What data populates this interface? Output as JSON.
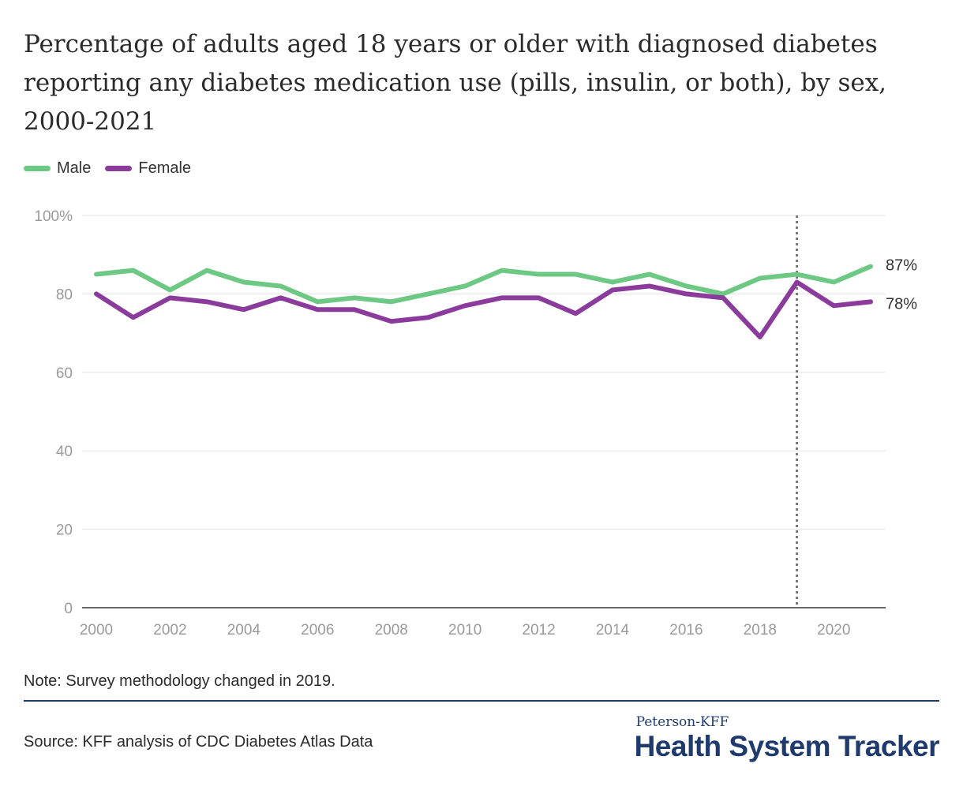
{
  "title": "Percentage of adults aged 18 years or older with diagnosed diabetes reporting any diabetes medication use (pills, insulin, or both), by sex, 2000-2021",
  "legend": [
    {
      "label": "Male",
      "color": "#6cc883"
    },
    {
      "label": "Female",
      "color": "#8a3b9b"
    }
  ],
  "chart_data": {
    "type": "line",
    "x": [
      2000,
      2001,
      2002,
      2003,
      2004,
      2005,
      2006,
      2007,
      2008,
      2009,
      2010,
      2011,
      2012,
      2013,
      2014,
      2015,
      2016,
      2017,
      2018,
      2019,
      2020,
      2021
    ],
    "series": [
      {
        "name": "Male",
        "color": "#6cc883",
        "values": [
          85,
          86,
          81,
          86,
          83,
          82,
          78,
          79,
          78,
          80,
          82,
          86,
          85,
          85,
          83,
          85,
          82,
          80,
          84,
          85,
          83,
          87
        ]
      },
      {
        "name": "Female",
        "color": "#8a3b9b",
        "values": [
          80,
          74,
          79,
          78,
          76,
          79,
          76,
          76,
          73,
          74,
          77,
          79,
          79,
          75,
          81,
          82,
          80,
          79,
          69,
          83,
          77,
          78
        ]
      }
    ],
    "end_labels": [
      "87%",
      "78%"
    ],
    "ylim": [
      0,
      100
    ],
    "yticks": [
      0,
      20,
      40,
      60,
      80,
      100
    ],
    "ytick_labels": [
      "0",
      "20",
      "40",
      "60",
      "80",
      "100%"
    ],
    "xticks": [
      2000,
      2002,
      2004,
      2006,
      2008,
      2010,
      2012,
      2014,
      2016,
      2018,
      2020
    ],
    "xtick_labels": [
      "2000",
      "2002",
      "2004",
      "2006",
      "2008",
      "2010",
      "2012",
      "2014",
      "2016",
      "2018",
      "2020"
    ],
    "reference_line_x": 2019,
    "grid": true,
    "legend_position": "top-left",
    "xlabel": "",
    "ylabel": ""
  },
  "note": "Note: Survey methodology changed in 2019.",
  "source": "Source: KFF analysis of CDC Diabetes Atlas Data",
  "brand": {
    "top": "Peterson-KFF",
    "main": "Health System Tracker"
  }
}
